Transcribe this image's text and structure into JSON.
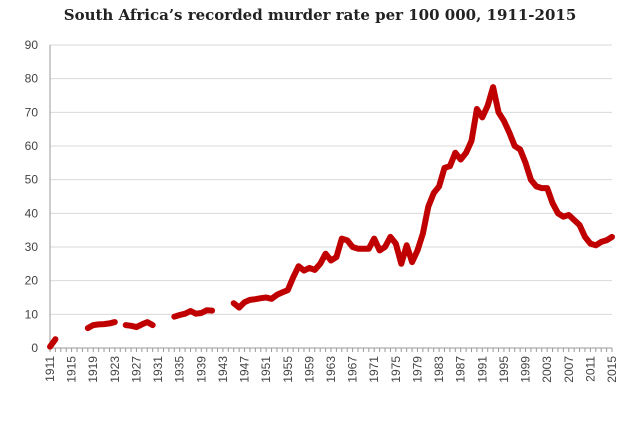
{
  "chart_data": {
    "type": "line",
    "title": "South Africa’s recorded murder rate per 100 000, 1911-2015",
    "xlabel": "",
    "ylabel": "",
    "ylim": [
      0,
      90
    ],
    "xlim": [
      1911,
      2015
    ],
    "yticks": [
      0,
      10,
      20,
      30,
      40,
      50,
      60,
      70,
      80,
      90
    ],
    "xticks": [
      1911,
      1915,
      1919,
      1923,
      1927,
      1931,
      1935,
      1939,
      1943,
      1947,
      1951,
      1955,
      1959,
      1963,
      1967,
      1971,
      1975,
      1979,
      1983,
      1987,
      1991,
      1995,
      1999,
      2003,
      2007,
      2011,
      2015
    ],
    "grid": true,
    "legend": "none",
    "series": [
      {
        "name": "Murder rate per 100 000",
        "color": "#c00000",
        "points": [
          [
            1911,
            0.4
          ],
          [
            1912,
            2.6
          ],
          [
            1913,
            null
          ],
          [
            1917,
            null
          ],
          [
            1918,
            5.9
          ],
          [
            1919,
            6.8
          ],
          [
            1920,
            7.0
          ],
          [
            1921,
            7.1
          ],
          [
            1922,
            7.3
          ],
          [
            1923,
            7.7
          ],
          [
            1924,
            null
          ],
          [
            1925,
            6.8
          ],
          [
            1926,
            6.6
          ],
          [
            1927,
            6.2
          ],
          [
            1928,
            7.0
          ],
          [
            1929,
            7.7
          ],
          [
            1930,
            6.8
          ],
          [
            1931,
            null
          ],
          [
            1933,
            null
          ],
          [
            1934,
            9.3
          ],
          [
            1935,
            9.8
          ],
          [
            1936,
            10.2
          ],
          [
            1937,
            11.0
          ],
          [
            1938,
            10.2
          ],
          [
            1939,
            10.4
          ],
          [
            1940,
            11.2
          ],
          [
            1941,
            11.1
          ],
          [
            1942,
            null
          ],
          [
            1944,
            null
          ],
          [
            1945,
            13.3
          ],
          [
            1946,
            12.0
          ],
          [
            1947,
            13.6
          ],
          [
            1948,
            14.3
          ],
          [
            1949,
            14.5
          ],
          [
            1950,
            14.8
          ],
          [
            1951,
            15.0
          ],
          [
            1952,
            14.6
          ],
          [
            1953,
            15.8
          ],
          [
            1954,
            16.5
          ],
          [
            1955,
            17.2
          ],
          [
            1956,
            21.0
          ],
          [
            1957,
            24.3
          ],
          [
            1958,
            23.0
          ],
          [
            1959,
            23.8
          ],
          [
            1960,
            23.2
          ],
          [
            1961,
            25.0
          ],
          [
            1962,
            28.0
          ],
          [
            1963,
            26.0
          ],
          [
            1964,
            27.0
          ],
          [
            1965,
            32.5
          ],
          [
            1966,
            32.0
          ],
          [
            1967,
            30.0
          ],
          [
            1968,
            29.5
          ],
          [
            1969,
            29.5
          ],
          [
            1970,
            29.5
          ],
          [
            1971,
            32.5
          ],
          [
            1972,
            29.0
          ],
          [
            1973,
            30.0
          ],
          [
            1974,
            33.0
          ],
          [
            1975,
            31.0
          ],
          [
            1976,
            25.0
          ],
          [
            1977,
            30.5
          ],
          [
            1978,
            25.5
          ],
          [
            1979,
            29.0
          ],
          [
            1980,
            34.0
          ],
          [
            1981,
            42.0
          ],
          [
            1982,
            46.0
          ],
          [
            1983,
            48.0
          ],
          [
            1984,
            53.5
          ],
          [
            1985,
            54.0
          ],
          [
            1986,
            58.0
          ],
          [
            1987,
            56.0
          ],
          [
            1988,
            58.0
          ],
          [
            1989,
            61.5
          ],
          [
            1990,
            71.0
          ],
          [
            1991,
            68.5
          ],
          [
            1992,
            72.0
          ],
          [
            1993,
            77.5
          ],
          [
            1994,
            70.0
          ],
          [
            1995,
            67.5
          ],
          [
            1996,
            64.0
          ],
          [
            1997,
            60.0
          ],
          [
            1998,
            59.0
          ],
          [
            1999,
            55.0
          ],
          [
            2000,
            50.0
          ],
          [
            2001,
            48.0
          ],
          [
            2002,
            47.5
          ],
          [
            2003,
            47.5
          ],
          [
            2004,
            43.0
          ],
          [
            2005,
            40.0
          ],
          [
            2006,
            39.0
          ],
          [
            2007,
            39.5
          ],
          [
            2008,
            38.0
          ],
          [
            2009,
            36.5
          ],
          [
            2010,
            33.0
          ],
          [
            2011,
            31.0
          ],
          [
            2012,
            30.5
          ],
          [
            2013,
            31.5
          ],
          [
            2014,
            32.0
          ],
          [
            2015,
            33.0
          ]
        ]
      }
    ]
  }
}
